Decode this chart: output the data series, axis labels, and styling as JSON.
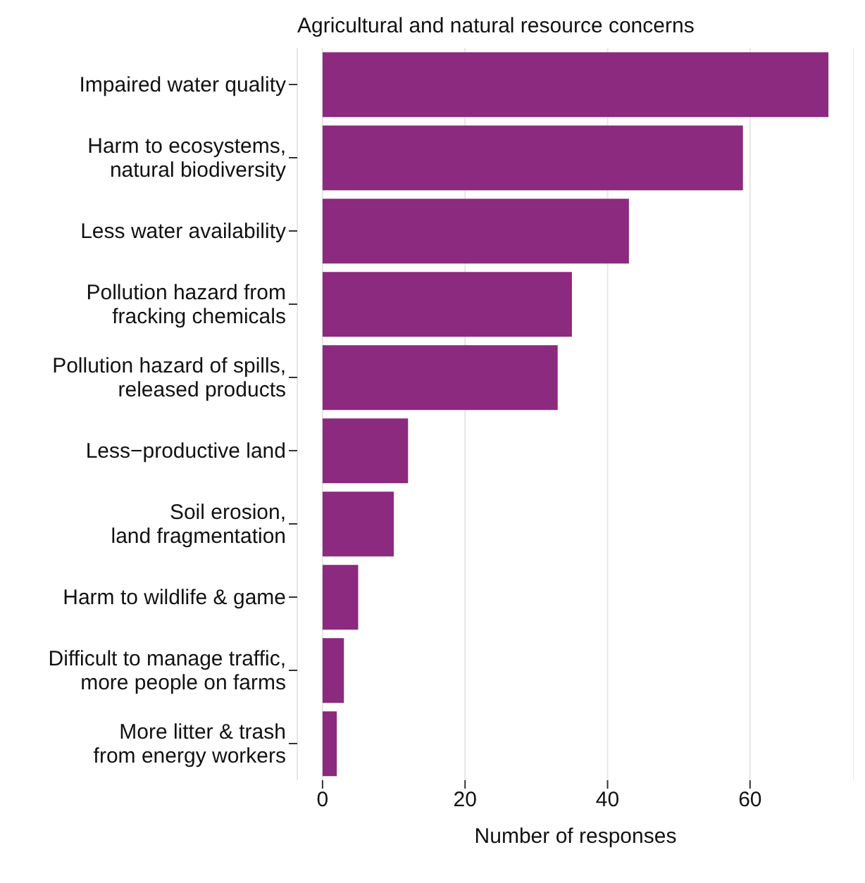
{
  "chart_data": {
    "type": "bar",
    "orientation": "horizontal",
    "title": "Agricultural and natural resource concerns",
    "xlabel": "Number of responses",
    "categories": [
      "Impaired water quality",
      "Harm to ecosystems,\nnatural biodiversity",
      "Less water availability",
      "Pollution hazard from\nfracking chemicals",
      "Pollution hazard of spills,\nreleased products",
      "Less−productive land",
      "Soil erosion,\nland fragmentation",
      "Harm to wildlife & game",
      "Difficult to manage traffic,\nmore people on farms",
      "More litter & trash\nfrom energy workers"
    ],
    "values": [
      71,
      59,
      43,
      35,
      33,
      12,
      10,
      5,
      3,
      2
    ],
    "color": "#8b2a7e",
    "xlim": [
      -3.55,
      74.55
    ],
    "xticks": [
      0,
      20,
      40,
      60
    ],
    "grid": "x"
  }
}
